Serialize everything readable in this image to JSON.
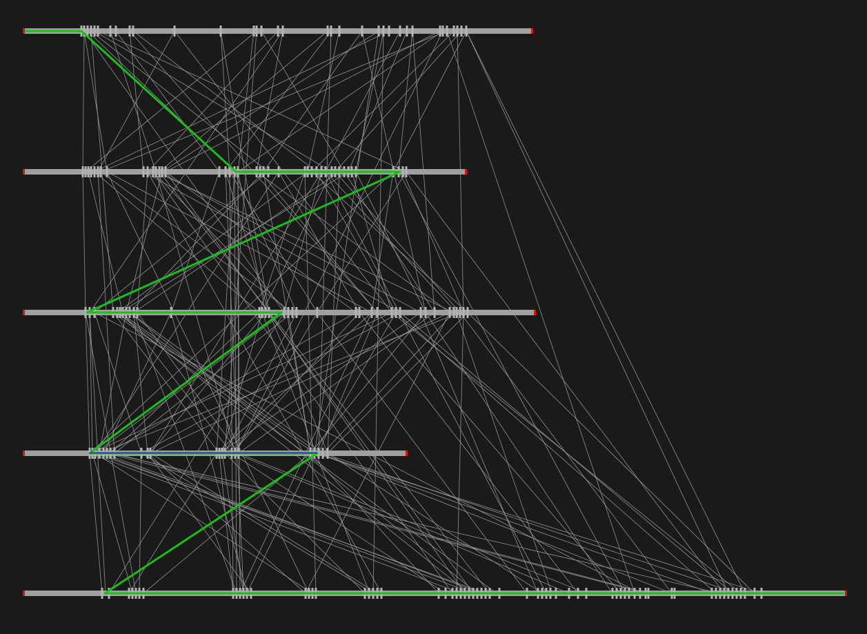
{
  "colors": {
    "background": "#1a1a1a",
    "track": "#a0a0a0",
    "track_end": "#e01010",
    "link": "#9a9a9a",
    "highlight_path": "#18c018",
    "highlight_segment": "#2a4fa8"
  },
  "tracks": [
    {
      "id": "track-1",
      "ticks": [
        118,
        122,
        127,
        132,
        137,
        142,
        160,
        168,
        188,
        193,
        253,
        320,
        368,
        372,
        379,
        403,
        410,
        475,
        480,
        492,
        525,
        549,
        556,
        564,
        580,
        590,
        598,
        638,
        642,
        648,
        658,
        663,
        669,
        676
      ]
    },
    {
      "id": "track-2",
      "ticks": [
        120,
        124,
        128,
        132,
        137,
        142,
        146,
        155,
        208,
        214,
        222,
        226,
        231,
        235,
        240,
        318,
        327,
        333,
        340,
        345,
        372,
        377,
        382,
        389,
        404,
        442,
        446,
        452,
        459,
        466,
        472,
        481,
        486,
        492,
        499,
        505,
        510,
        516,
        570,
        578,
        584,
        589
      ]
    },
    {
      "id": "track-3",
      "ticks": [
        124,
        130,
        137,
        164,
        170,
        174,
        178,
        183,
        188,
        194,
        199,
        248,
        376,
        380,
        385,
        390,
        412,
        418,
        424,
        430,
        460,
        516,
        521,
        539,
        547,
        568,
        574,
        580,
        610,
        617,
        630,
        652,
        658,
        662,
        667,
        672,
        678
      ]
    },
    {
      "id": "track-4",
      "ticks": [
        130,
        134,
        138,
        144,
        150,
        155,
        160,
        166,
        205,
        214,
        218,
        314,
        318,
        322,
        326,
        336,
        341,
        346,
        450,
        456,
        462,
        468,
        475
      ]
    },
    {
      "id": "track-5",
      "ticks": [
        148,
        158,
        187,
        192,
        197,
        202,
        208,
        338,
        343,
        348,
        353,
        358,
        364,
        443,
        448,
        453,
        458,
        529,
        535,
        541,
        547,
        553,
        636,
        646,
        656,
        662,
        668,
        674,
        680,
        686,
        692,
        698,
        704,
        710,
        724,
        764,
        780,
        786,
        792,
        798,
        806,
        825,
        838,
        850,
        888,
        894,
        900,
        906,
        912,
        920,
        928,
        936,
        940,
        974,
        978,
        1032,
        1038,
        1044,
        1050,
        1056,
        1062,
        1068,
        1074,
        1080,
        1094,
        1104
      ]
    }
  ],
  "links": [
    [
      0,
      122,
      1,
      120
    ],
    [
      0,
      122,
      1,
      155
    ],
    [
      0,
      127,
      1,
      340
    ],
    [
      0,
      132,
      1,
      389
    ],
    [
      0,
      137,
      1,
      481
    ],
    [
      0,
      142,
      1,
      589
    ],
    [
      0,
      160,
      1,
      226
    ],
    [
      0,
      168,
      1,
      318
    ],
    [
      0,
      188,
      1,
      208
    ],
    [
      0,
      193,
      1,
      459
    ],
    [
      0,
      253,
      1,
      142
    ],
    [
      0,
      320,
      1,
      333
    ],
    [
      0,
      368,
      1,
      345
    ],
    [
      0,
      372,
      1,
      124
    ],
    [
      0,
      379,
      1,
      499
    ],
    [
      0,
      403,
      1,
      214
    ],
    [
      0,
      410,
      1,
      372
    ],
    [
      0,
      475,
      1,
      231
    ],
    [
      0,
      480,
      1,
      327
    ],
    [
      0,
      492,
      1,
      446
    ],
    [
      0,
      525,
      1,
      382
    ],
    [
      0,
      549,
      1,
      235
    ],
    [
      0,
      556,
      1,
      516
    ],
    [
      0,
      564,
      1,
      137
    ],
    [
      0,
      580,
      1,
      472
    ],
    [
      0,
      590,
      1,
      505
    ],
    [
      0,
      598,
      1,
      578
    ],
    [
      0,
      638,
      1,
      240
    ],
    [
      0,
      642,
      1,
      345
    ],
    [
      0,
      648,
      1,
      146
    ],
    [
      0,
      658,
      1,
      452
    ],
    [
      0,
      669,
      1,
      486
    ],
    [
      0,
      676,
      1,
      570
    ],
    [
      0,
      122,
      2,
      412
    ],
    [
      0,
      132,
      2,
      164
    ],
    [
      0,
      188,
      2,
      547
    ],
    [
      0,
      253,
      2,
      568
    ],
    [
      0,
      320,
      2,
      390
    ],
    [
      0,
      410,
      2,
      130
    ],
    [
      0,
      525,
      2,
      617
    ],
    [
      0,
      549,
      3,
      456
    ],
    [
      0,
      598,
      2,
      630
    ],
    [
      0,
      663,
      2,
      672
    ],
    [
      0,
      676,
      4,
      1080
    ],
    [
      0,
      676,
      4,
      1056
    ],
    [
      0,
      648,
      4,
      920
    ],
    [
      0,
      642,
      3,
      341
    ],
    [
      0,
      556,
      4,
      541
    ],
    [
      0,
      480,
      3,
      462
    ],
    [
      0,
      372,
      3,
      326
    ],
    [
      1,
      120,
      2,
      124
    ],
    [
      1,
      128,
      2,
      178
    ],
    [
      1,
      137,
      2,
      376
    ],
    [
      1,
      146,
      2,
      424
    ],
    [
      1,
      155,
      2,
      539
    ],
    [
      1,
      208,
      2,
      580
    ],
    [
      1,
      214,
      2,
      199
    ],
    [
      1,
      222,
      2,
      418
    ],
    [
      1,
      226,
      2,
      658
    ],
    [
      1,
      231,
      2,
      610
    ],
    [
      1,
      235,
      2,
      183
    ],
    [
      1,
      240,
      2,
      516
    ],
    [
      1,
      318,
      2,
      248
    ],
    [
      1,
      327,
      2,
      390
    ],
    [
      1,
      333,
      2,
      460
    ],
    [
      1,
      340,
      2,
      430
    ],
    [
      1,
      345,
      2,
      385
    ],
    [
      1,
      372,
      2,
      652
    ],
    [
      1,
      377,
      2,
      547
    ],
    [
      1,
      382,
      2,
      188
    ],
    [
      1,
      389,
      2,
      137
    ],
    [
      1,
      404,
      2,
      521
    ],
    [
      1,
      442,
      2,
      376
    ],
    [
      1,
      446,
      2,
      170
    ],
    [
      1,
      452,
      2,
      678
    ],
    [
      1,
      459,
      2,
      574
    ],
    [
      1,
      466,
      2,
      412
    ],
    [
      1,
      472,
      2,
      662
    ],
    [
      1,
      481,
      2,
      380
    ],
    [
      1,
      486,
      2,
      667
    ],
    [
      1,
      492,
      2,
      194
    ],
    [
      1,
      499,
      2,
      630
    ],
    [
      1,
      505,
      2,
      174
    ],
    [
      1,
      510,
      2,
      568
    ],
    [
      1,
      516,
      2,
      617
    ],
    [
      1,
      570,
      2,
      539
    ],
    [
      1,
      584,
      2,
      672
    ],
    [
      1,
      589,
      2,
      460
    ],
    [
      1,
      142,
      3,
      166
    ],
    [
      1,
      226,
      3,
      341
    ],
    [
      1,
      340,
      3,
      314
    ],
    [
      1,
      345,
      3,
      346
    ],
    [
      1,
      382,
      3,
      450
    ],
    [
      1,
      442,
      4,
      458
    ],
    [
      1,
      492,
      3,
      475
    ],
    [
      1,
      589,
      4,
      1050
    ],
    [
      1,
      578,
      4,
      906
    ],
    [
      1,
      472,
      4,
      792
    ],
    [
      1,
      240,
      4,
      686
    ],
    [
      1,
      214,
      4,
      553
    ],
    [
      1,
      155,
      4,
      448
    ],
    [
      1,
      340,
      4,
      343
    ],
    [
      1,
      345,
      4,
      348
    ],
    [
      1,
      333,
      4,
      338
    ],
    [
      1,
      327,
      4,
      353
    ],
    [
      1,
      570,
      3,
      130
    ],
    [
      1,
      466,
      3,
      218
    ],
    [
      1,
      404,
      3,
      138
    ],
    [
      1,
      222,
      4,
      656
    ],
    [
      1,
      231,
      4,
      710
    ],
    [
      2,
      124,
      3,
      130
    ],
    [
      2,
      130,
      3,
      134
    ],
    [
      2,
      137,
      3,
      205
    ],
    [
      2,
      164,
      3,
      318
    ],
    [
      2,
      170,
      3,
      456
    ],
    [
      2,
      174,
      3,
      462
    ],
    [
      2,
      178,
      3,
      336
    ],
    [
      2,
      183,
      3,
      144
    ],
    [
      2,
      188,
      3,
      468
    ],
    [
      2,
      194,
      3,
      214
    ],
    [
      2,
      199,
      3,
      346
    ],
    [
      2,
      248,
      3,
      150
    ],
    [
      2,
      376,
      3,
      160
    ],
    [
      2,
      380,
      3,
      322
    ],
    [
      2,
      385,
      3,
      218
    ],
    [
      2,
      390,
      3,
      475
    ],
    [
      2,
      412,
      3,
      138
    ],
    [
      2,
      418,
      3,
      450
    ],
    [
      2,
      424,
      3,
      166
    ],
    [
      2,
      430,
      3,
      326
    ],
    [
      2,
      460,
      3,
      341
    ],
    [
      2,
      516,
      3,
      155
    ],
    [
      2,
      521,
      3,
      336
    ],
    [
      2,
      539,
      3,
      314
    ],
    [
      2,
      547,
      3,
      462
    ],
    [
      2,
      568,
      3,
      134
    ],
    [
      2,
      574,
      3,
      456
    ],
    [
      2,
      580,
      3,
      205
    ],
    [
      2,
      610,
      3,
      318
    ],
    [
      2,
      617,
      3,
      450
    ],
    [
      2,
      630,
      3,
      346
    ],
    [
      2,
      652,
      3,
      218
    ],
    [
      2,
      658,
      3,
      468
    ],
    [
      2,
      667,
      3,
      144
    ],
    [
      2,
      678,
      3,
      475
    ],
    [
      2,
      412,
      4,
      158
    ],
    [
      2,
      539,
      4,
      348
    ],
    [
      2,
      652,
      4,
      443
    ],
    [
      2,
      672,
      4,
      662
    ],
    [
      2,
      662,
      4,
      800
    ],
    [
      2,
      580,
      4,
      1062
    ],
    [
      2,
      574,
      4,
      1038
    ],
    [
      2,
      547,
      4,
      900
    ],
    [
      2,
      521,
      4,
      838
    ],
    [
      2,
      460,
      4,
      764
    ],
    [
      2,
      390,
      4,
      674
    ],
    [
      2,
      380,
      4,
      536
    ],
    [
      2,
      248,
      4,
      358
    ],
    [
      2,
      194,
      4,
      343
    ],
    [
      2,
      188,
      4,
      692
    ],
    [
      2,
      170,
      4,
      680
    ],
    [
      2,
      164,
      4,
      720
    ],
    [
      2,
      137,
      4,
      928
    ],
    [
      2,
      130,
      4,
      153
    ],
    [
      2,
      124,
      4,
      197
    ],
    [
      2,
      678,
      4,
      1094
    ],
    [
      2,
      667,
      4,
      974
    ],
    [
      2,
      617,
      4,
      888
    ],
    [
      2,
      610,
      4,
      780
    ],
    [
      2,
      568,
      4,
      1074
    ],
    [
      3,
      130,
      4,
      148
    ],
    [
      3,
      134,
      4,
      192
    ],
    [
      3,
      138,
      4,
      453
    ],
    [
      3,
      144,
      4,
      686
    ],
    [
      3,
      150,
      4,
      698
    ],
    [
      3,
      155,
      4,
      936
    ],
    [
      3,
      160,
      4,
      1044
    ],
    [
      3,
      166,
      4,
      940
    ],
    [
      3,
      205,
      4,
      202
    ],
    [
      3,
      214,
      4,
      364
    ],
    [
      3,
      218,
      4,
      547
    ],
    [
      3,
      314,
      4,
      187
    ],
    [
      3,
      318,
      4,
      338
    ],
    [
      3,
      322,
      4,
      353
    ],
    [
      3,
      326,
      4,
      529
    ],
    [
      3,
      336,
      4,
      646
    ],
    [
      3,
      341,
      4,
      825
    ],
    [
      3,
      346,
      4,
      850
    ],
    [
      3,
      450,
      4,
      208
    ],
    [
      3,
      456,
      4,
      358
    ],
    [
      3,
      462,
      4,
      1032
    ],
    [
      3,
      468,
      4,
      1068
    ],
    [
      3,
      475,
      4,
      786
    ],
    [
      3,
      130,
      4,
      668
    ],
    [
      3,
      138,
      4,
      704
    ],
    [
      3,
      456,
      4,
      1104
    ],
    [
      3,
      462,
      4,
      974
    ],
    [
      3,
      450,
      4,
      636
    ],
    [
      3,
      214,
      4,
      443
    ],
    [
      3,
      205,
      4,
      541
    ]
  ],
  "highlight_path": [
    [
      0,
      36
    ],
    [
      0,
      118
    ],
    [
      1,
      342
    ],
    [
      1,
      580
    ],
    [
      2,
      126
    ],
    [
      2,
      408
    ],
    [
      3,
      130
    ],
    [
      3,
      460
    ],
    [
      4,
      152
    ],
    [
      4,
      1224
    ]
  ],
  "highlight_segment": [
    [
      3,
      130
    ],
    [
      3,
      460
    ]
  ]
}
